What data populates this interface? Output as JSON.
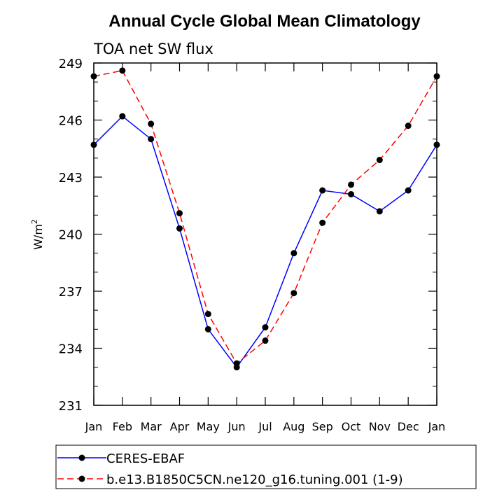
{
  "chart_data": {
    "type": "line",
    "title": "Annual Cycle Global Mean Climatology",
    "subtitle": "TOA net SW flux",
    "ylabel": "W/m",
    "ylabel_sup": "2",
    "xlabel": "",
    "categories": [
      "Jan",
      "Feb",
      "Mar",
      "Apr",
      "May",
      "Jun",
      "Jul",
      "Aug",
      "Sep",
      "Oct",
      "Nov",
      "Dec",
      "Jan"
    ],
    "ylim": [
      231,
      249
    ],
    "yticks": [
      231,
      234,
      237,
      240,
      243,
      246,
      249
    ],
    "ytick_labels": [
      "231",
      "234",
      "237",
      "240",
      "243",
      "246",
      "249"
    ],
    "grid": false,
    "series": [
      {
        "name": "CERES-EBAF",
        "color": "#0000ff",
        "dash": "solid",
        "values": [
          244.7,
          246.2,
          245.0,
          240.3,
          235.0,
          233.0,
          235.1,
          239.0,
          242.3,
          242.1,
          241.2,
          242.3,
          244.7
        ]
      },
      {
        "name": "b.e13.B1850C5CN.ne120_g16.tuning.001 (1-9)",
        "color": "#ff0000",
        "dash": "dashed",
        "values": [
          248.3,
          248.6,
          245.8,
          241.1,
          235.8,
          233.2,
          234.4,
          236.9,
          240.6,
          242.6,
          243.9,
          245.7,
          248.3
        ]
      }
    ],
    "legend_position": "bottom"
  }
}
